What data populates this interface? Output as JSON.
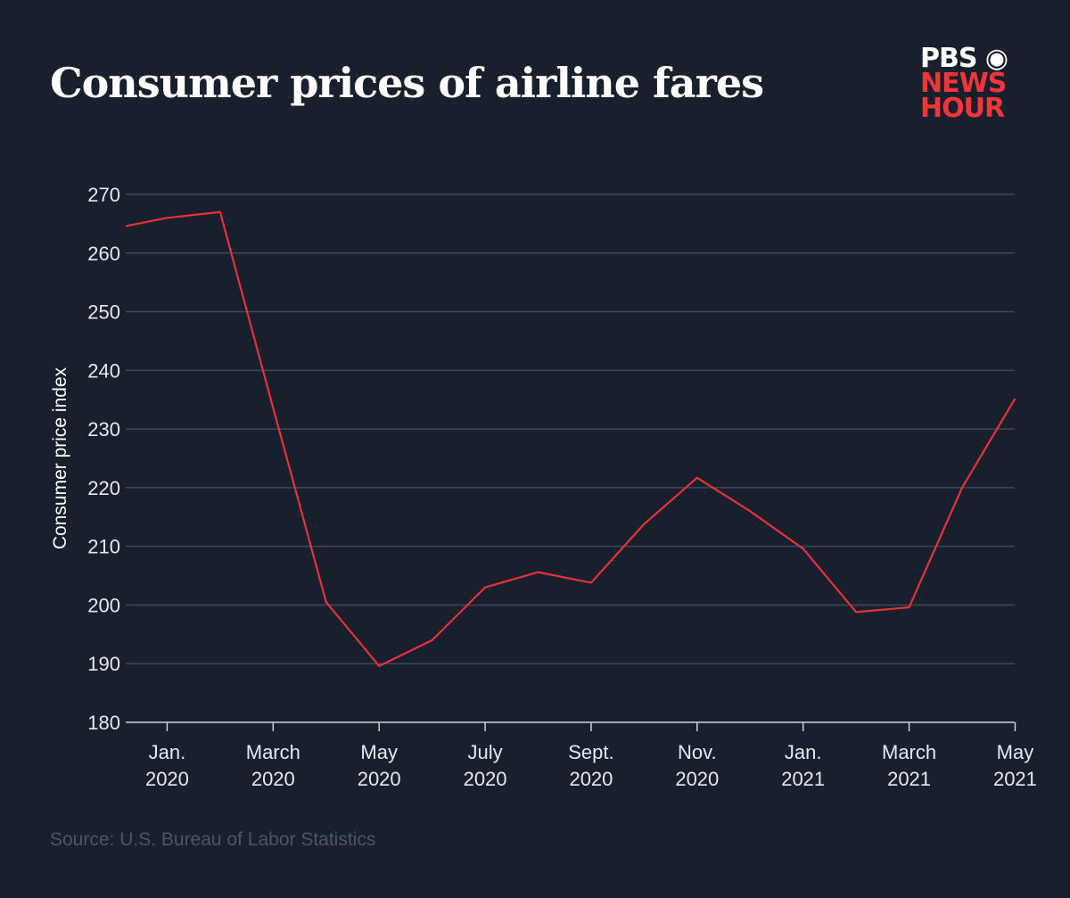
{
  "chart_data": {
    "type": "line",
    "title": "Consumer prices of airline fares",
    "ylabel": "Consumer price index",
    "xlabel": "",
    "ylim": [
      180,
      270
    ],
    "yticks": [
      180,
      190,
      200,
      210,
      220,
      230,
      240,
      250,
      260,
      270
    ],
    "grid": true,
    "x": [
      "Dec. 2019",
      "Jan. 2020",
      "Feb. 2020",
      "March 2020",
      "April 2020",
      "May 2020",
      "June 2020",
      "July 2020",
      "Aug. 2020",
      "Sept. 2020",
      "Oct. 2020",
      "Nov. 2020",
      "Dec. 2020",
      "Jan. 2021",
      "Feb. 2021",
      "March 2021",
      "April 2021",
      "May 2021"
    ],
    "xticks": [
      {
        "month": "Jan. 2020",
        "line1": "Jan.",
        "line2": "2020"
      },
      {
        "month": "March 2020",
        "line1": "March",
        "line2": "2020"
      },
      {
        "month": "May 2020",
        "line1": "May",
        "line2": "2020"
      },
      {
        "month": "July 2020",
        "line1": "July",
        "line2": "2020"
      },
      {
        "month": "Sept. 2020",
        "line1": "Sept.",
        "line2": "2020"
      },
      {
        "month": "Nov. 2020",
        "line1": "Nov.",
        "line2": "2020"
      },
      {
        "month": "Jan. 2021",
        "line1": "Jan.",
        "line2": "2021"
      },
      {
        "month": "March 2021",
        "line1": "March",
        "line2": "2021"
      },
      {
        "month": "May 2021",
        "line1": "May",
        "line2": "2021"
      }
    ],
    "series": [
      {
        "values": [
          264.2,
          266.0,
          267.0,
          233.6,
          200.5,
          189.6,
          194.0,
          203.0,
          205.6,
          203.8,
          213.8,
          221.7,
          216.0,
          209.6,
          198.8,
          199.6,
          220.0,
          235.2
        ],
        "color": "#e8313a"
      }
    ]
  },
  "logo": {
    "line1": "PBS",
    "line2": "NEWS",
    "line3": "HOUR"
  },
  "source": "Source: U.S. Bureau of Labor Statistics"
}
